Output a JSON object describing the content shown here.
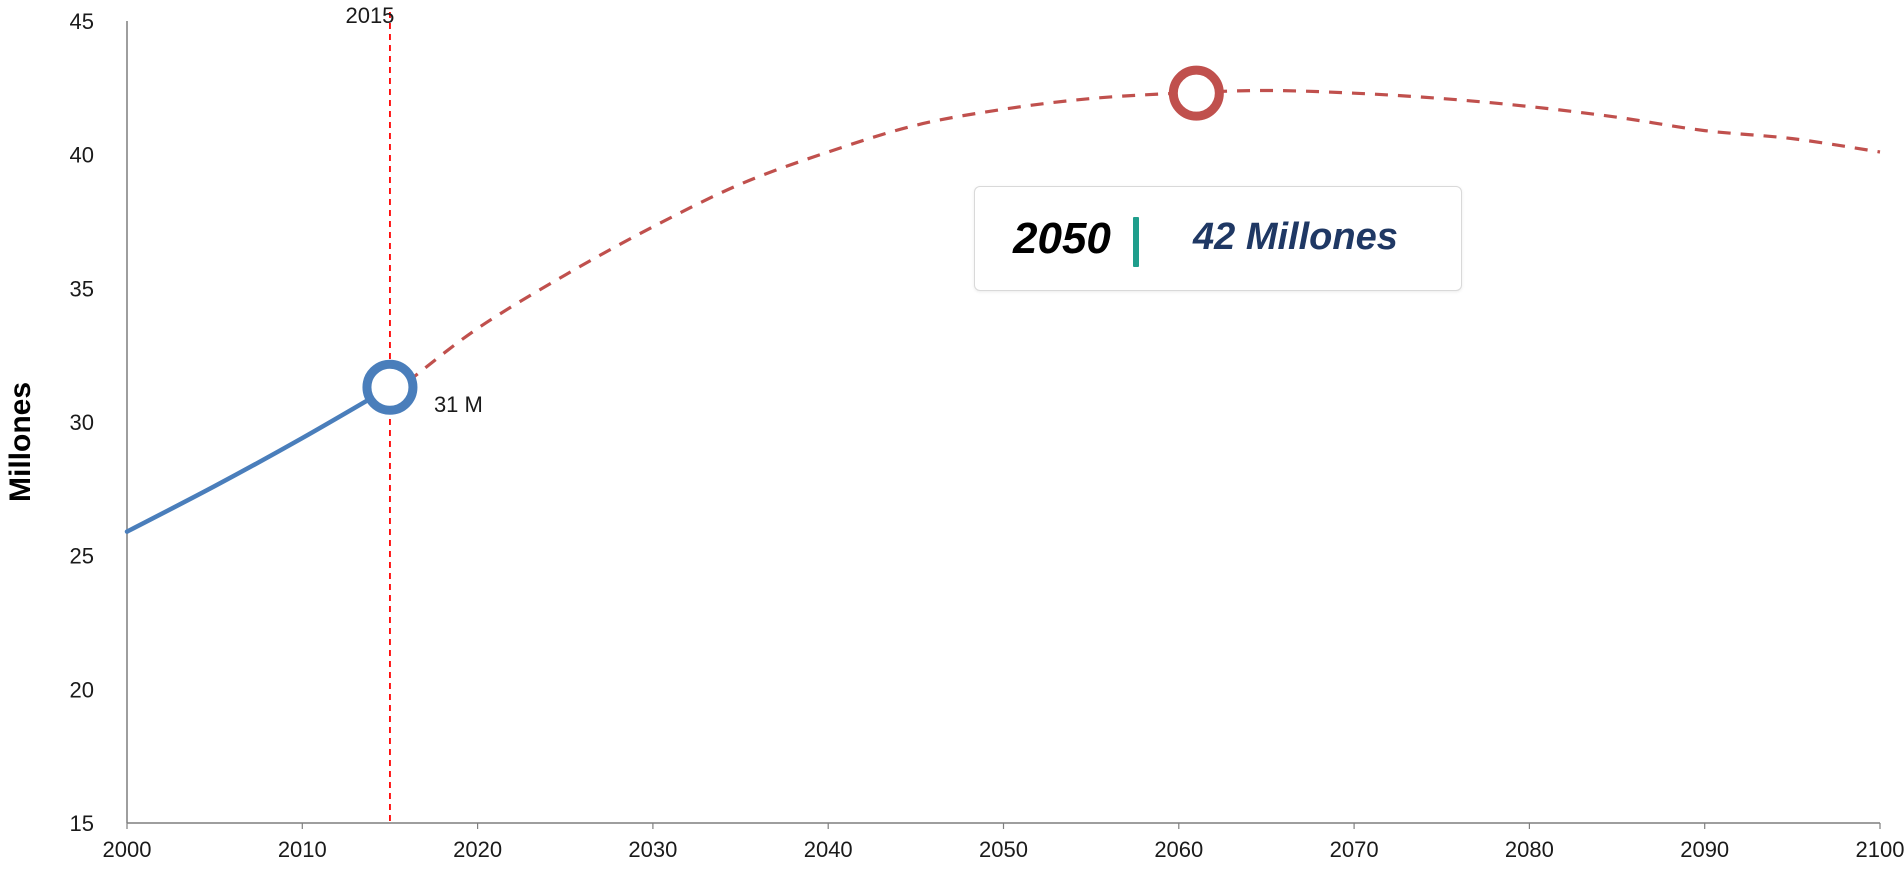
{
  "chart_data": {
    "type": "line",
    "title": "",
    "xlabel": "",
    "ylabel": "Millones",
    "xlim": [
      2000,
      2100
    ],
    "ylim": [
      15,
      45
    ],
    "x_ticks": [
      "2000",
      "2010",
      "2020",
      "2030",
      "2040",
      "2050",
      "2060",
      "2070",
      "2080",
      "2090",
      "2100"
    ],
    "y_ticks": [
      "15",
      "20",
      "25",
      "30",
      "35",
      "40",
      "45"
    ],
    "grid": false,
    "legend": "none",
    "series": [
      {
        "style": "solid",
        "color": "#4a7ebb",
        "x": [
          2000,
          2005,
          2010,
          2015
        ],
        "y": [
          25.9,
          27.6,
          29.4,
          31.3
        ]
      },
      {
        "style": "dashed",
        "color": "#c0504d",
        "x": [
          2016,
          2020,
          2025,
          2030,
          2035,
          2040,
          2045,
          2050,
          2055,
          2060,
          2065,
          2070,
          2075,
          2080,
          2085,
          2090,
          2095,
          2100
        ],
        "y": [
          31.5,
          33.5,
          35.5,
          37.3,
          38.9,
          40.1,
          41.1,
          41.7,
          42.1,
          42.3,
          42.4,
          42.3,
          42.1,
          41.8,
          41.4,
          40.9,
          40.6,
          40.1
        ]
      }
    ],
    "reference_line": {
      "x": 2015,
      "label": "2015",
      "color": "#ff0000"
    },
    "markers": [
      {
        "x": 2015,
        "y": 31.3,
        "color": "#4a7ebb",
        "label": "31 M"
      },
      {
        "x": 2061,
        "y": 42.3,
        "color": "#c0504d",
        "label": ""
      }
    ],
    "callout": {
      "year": "2050",
      "value": "42 Millones",
      "separator_color": "#1f9e8c",
      "value_color": "#1f3864"
    }
  }
}
